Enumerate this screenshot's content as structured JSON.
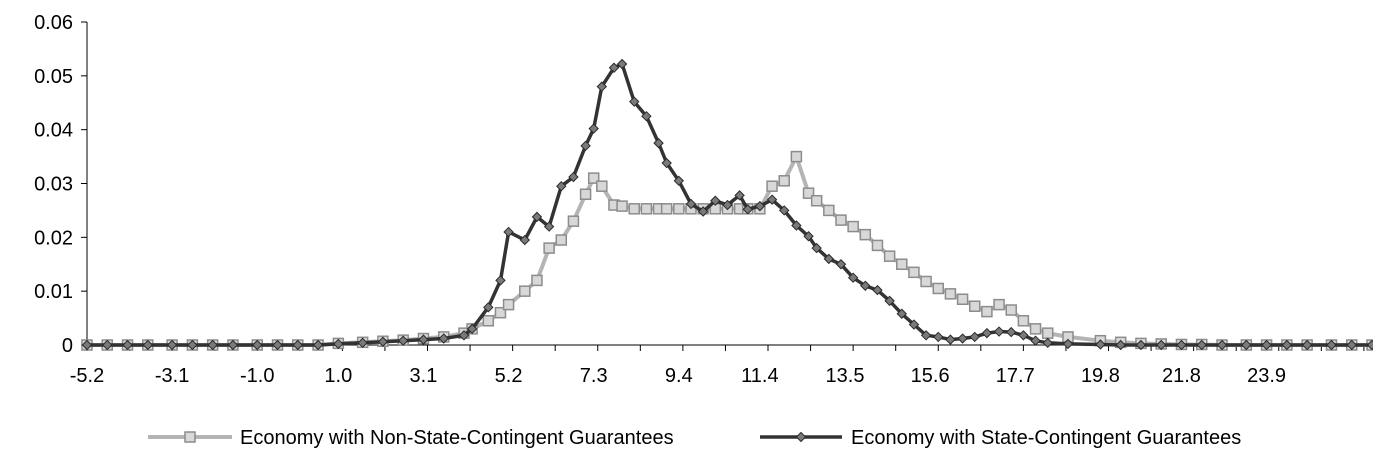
{
  "chart_data": {
    "type": "line",
    "title": "",
    "xlabel": "",
    "ylabel": "",
    "ylim": [
      0,
      0.06
    ],
    "yticks": [
      "0",
      "0.01",
      "0.02",
      "0.03",
      "0.04",
      "0.05",
      "0.06"
    ],
    "x_ticks": [
      "-5.2",
      "-3.1",
      "-1.0",
      "1.0",
      "3.1",
      "5.2",
      "7.3",
      "9.4",
      "11.4",
      "13.5",
      "15.6",
      "17.7",
      "19.8",
      "21.8",
      "23.9"
    ],
    "x": [
      -5.2,
      -4.7,
      -4.2,
      -3.7,
      -3.1,
      -2.6,
      -2.1,
      -1.6,
      -1.0,
      -0.5,
      0.0,
      0.5,
      1.0,
      1.6,
      2.1,
      2.6,
      3.1,
      3.6,
      4.1,
      4.3,
      4.7,
      5.0,
      5.2,
      5.6,
      5.9,
      6.2,
      6.5,
      6.8,
      7.1,
      7.3,
      7.5,
      7.8,
      8.0,
      8.3,
      8.6,
      8.9,
      9.1,
      9.4,
      9.7,
      10.0,
      10.3,
      10.6,
      10.9,
      11.1,
      11.4,
      11.7,
      12.0,
      12.3,
      12.6,
      12.8,
      13.1,
      13.4,
      13.7,
      14.0,
      14.3,
      14.6,
      14.9,
      15.2,
      15.5,
      15.8,
      16.1,
      16.4,
      16.7,
      17.0,
      17.3,
      17.6,
      17.9,
      18.2,
      18.5,
      19.0,
      19.8,
      20.3,
      20.8,
      21.3,
      21.8,
      22.3,
      22.8,
      23.4,
      23.9,
      24.4,
      24.9,
      25.5,
      26.0,
      26.5
    ],
    "legend_position": "bottom",
    "grid": false,
    "series": [
      {
        "name": "Economy with Non-State-Contingent Guarantees",
        "color": "#b4b4b4",
        "marker": "square",
        "values": [
          0,
          0,
          0,
          0,
          0,
          0,
          0,
          0,
          0,
          0,
          0,
          0,
          0.0003,
          0.0005,
          0.0007,
          0.0009,
          0.0012,
          0.0015,
          0.0022,
          0.003,
          0.0045,
          0.006,
          0.0075,
          0.01,
          0.012,
          0.018,
          0.0195,
          0.023,
          0.028,
          0.031,
          0.0295,
          0.026,
          0.0258,
          0.0253,
          0.0253,
          0.0253,
          0.0253,
          0.0253,
          0.0253,
          0.0253,
          0.0253,
          0.0253,
          0.0253,
          0.0253,
          0.0253,
          0.0295,
          0.0305,
          0.035,
          0.0282,
          0.0268,
          0.025,
          0.0232,
          0.022,
          0.0205,
          0.0185,
          0.0165,
          0.015,
          0.0135,
          0.0118,
          0.0105,
          0.0095,
          0.0085,
          0.0072,
          0.0062,
          0.0075,
          0.0065,
          0.0045,
          0.003,
          0.0022,
          0.0015,
          0.0008,
          0.0005,
          0.0003,
          0.0002,
          0.0001,
          0.0001,
          0,
          0,
          0,
          0,
          0,
          0,
          0,
          0
        ]
      },
      {
        "name": "Economy with State-Contingent Guarantees",
        "color": "#333333",
        "marker": "diamond",
        "values": [
          0,
          0,
          0,
          0,
          0,
          0,
          0,
          0,
          0,
          0,
          0,
          0,
          0.0002,
          0.0004,
          0.0006,
          0.0008,
          0.001,
          0.0012,
          0.0018,
          0.003,
          0.007,
          0.012,
          0.021,
          0.0195,
          0.0238,
          0.022,
          0.0295,
          0.0312,
          0.037,
          0.0402,
          0.048,
          0.0515,
          0.0522,
          0.0452,
          0.0425,
          0.0375,
          0.0338,
          0.0305,
          0.0262,
          0.0248,
          0.0268,
          0.026,
          0.0278,
          0.0252,
          0.0258,
          0.027,
          0.025,
          0.0222,
          0.0202,
          0.018,
          0.016,
          0.015,
          0.0125,
          0.011,
          0.0102,
          0.0082,
          0.0058,
          0.0038,
          0.0018,
          0.0015,
          0.001,
          0.0012,
          0.0015,
          0.0022,
          0.0025,
          0.0024,
          0.0018,
          0.0008,
          0.0004,
          0.0002,
          0.0001,
          0,
          0,
          0,
          0,
          0,
          0,
          0,
          0,
          0,
          0,
          0,
          0,
          0
        ]
      }
    ]
  }
}
